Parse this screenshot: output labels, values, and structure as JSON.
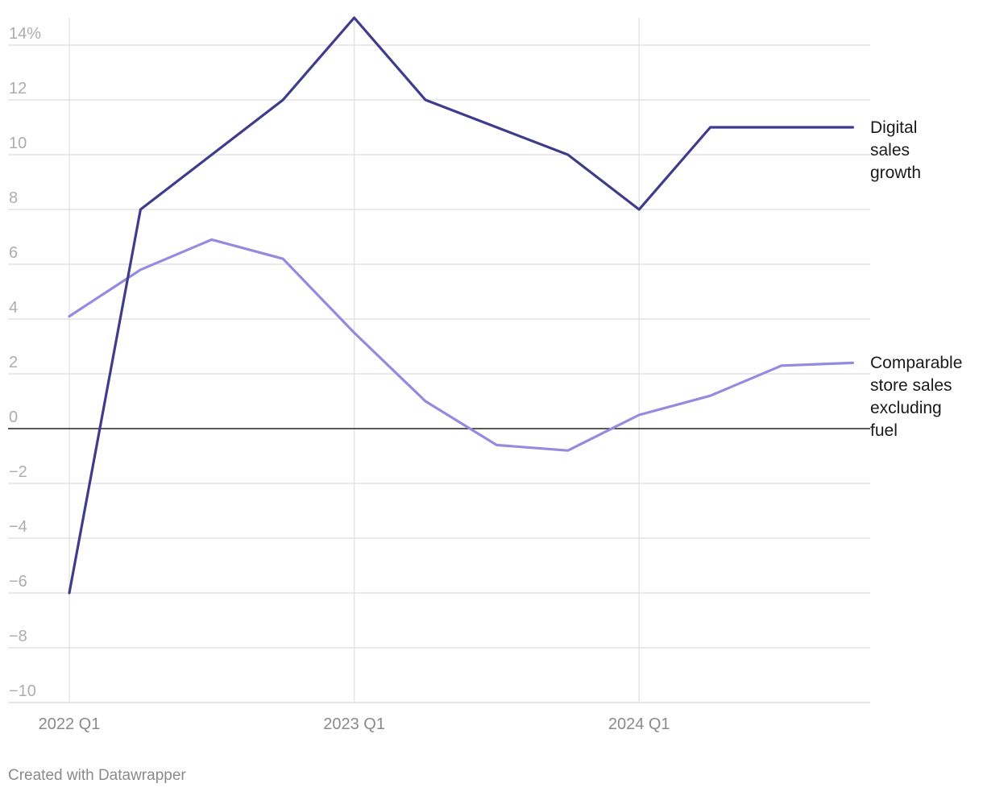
{
  "chart_data": {
    "type": "line",
    "title": "",
    "xlabel": "",
    "ylabel": "",
    "x": [
      "2022 Q1",
      "2022 Q2",
      "2022 Q3",
      "2022 Q4",
      "2023 Q1",
      "2023 Q2",
      "2023 Q3",
      "2023 Q4",
      "2024 Q1",
      "2024 Q2",
      "2024 Q3",
      "2024 Q4"
    ],
    "x_tick_labels": [
      "2022 Q1",
      "2023 Q1",
      "2024 Q1"
    ],
    "x_tick_indices": [
      0,
      4,
      8
    ],
    "ylim": [
      -10,
      15
    ],
    "y_ticks": [
      -10,
      -8,
      -6,
      -4,
      -2,
      0,
      2,
      4,
      6,
      8,
      10,
      12,
      14
    ],
    "y_tick_labels": [
      "−10",
      "−8",
      "−6",
      "−4",
      "−2",
      "0",
      "2",
      "4",
      "6",
      "8",
      "10",
      "12",
      "14%"
    ],
    "grid": true,
    "series": [
      {
        "name": "Digital sales growth",
        "label_lines": [
          "Digital",
          "sales",
          "growth"
        ],
        "color": "#3f3c8c",
        "values": [
          -6,
          8,
          10,
          12,
          15,
          12,
          11,
          10,
          8,
          11,
          11,
          11
        ]
      },
      {
        "name": "Comparable store sales excluding fuel",
        "label_lines": [
          "Comparable",
          "store sales",
          "excluding",
          "fuel"
        ],
        "color": "#948be0",
        "values": [
          4.1,
          5.8,
          6.9,
          6.2,
          3.5,
          1.0,
          -0.6,
          -0.8,
          0.5,
          1.2,
          2.3,
          2.4
        ]
      }
    ]
  },
  "credit": "Created with Datawrapper"
}
